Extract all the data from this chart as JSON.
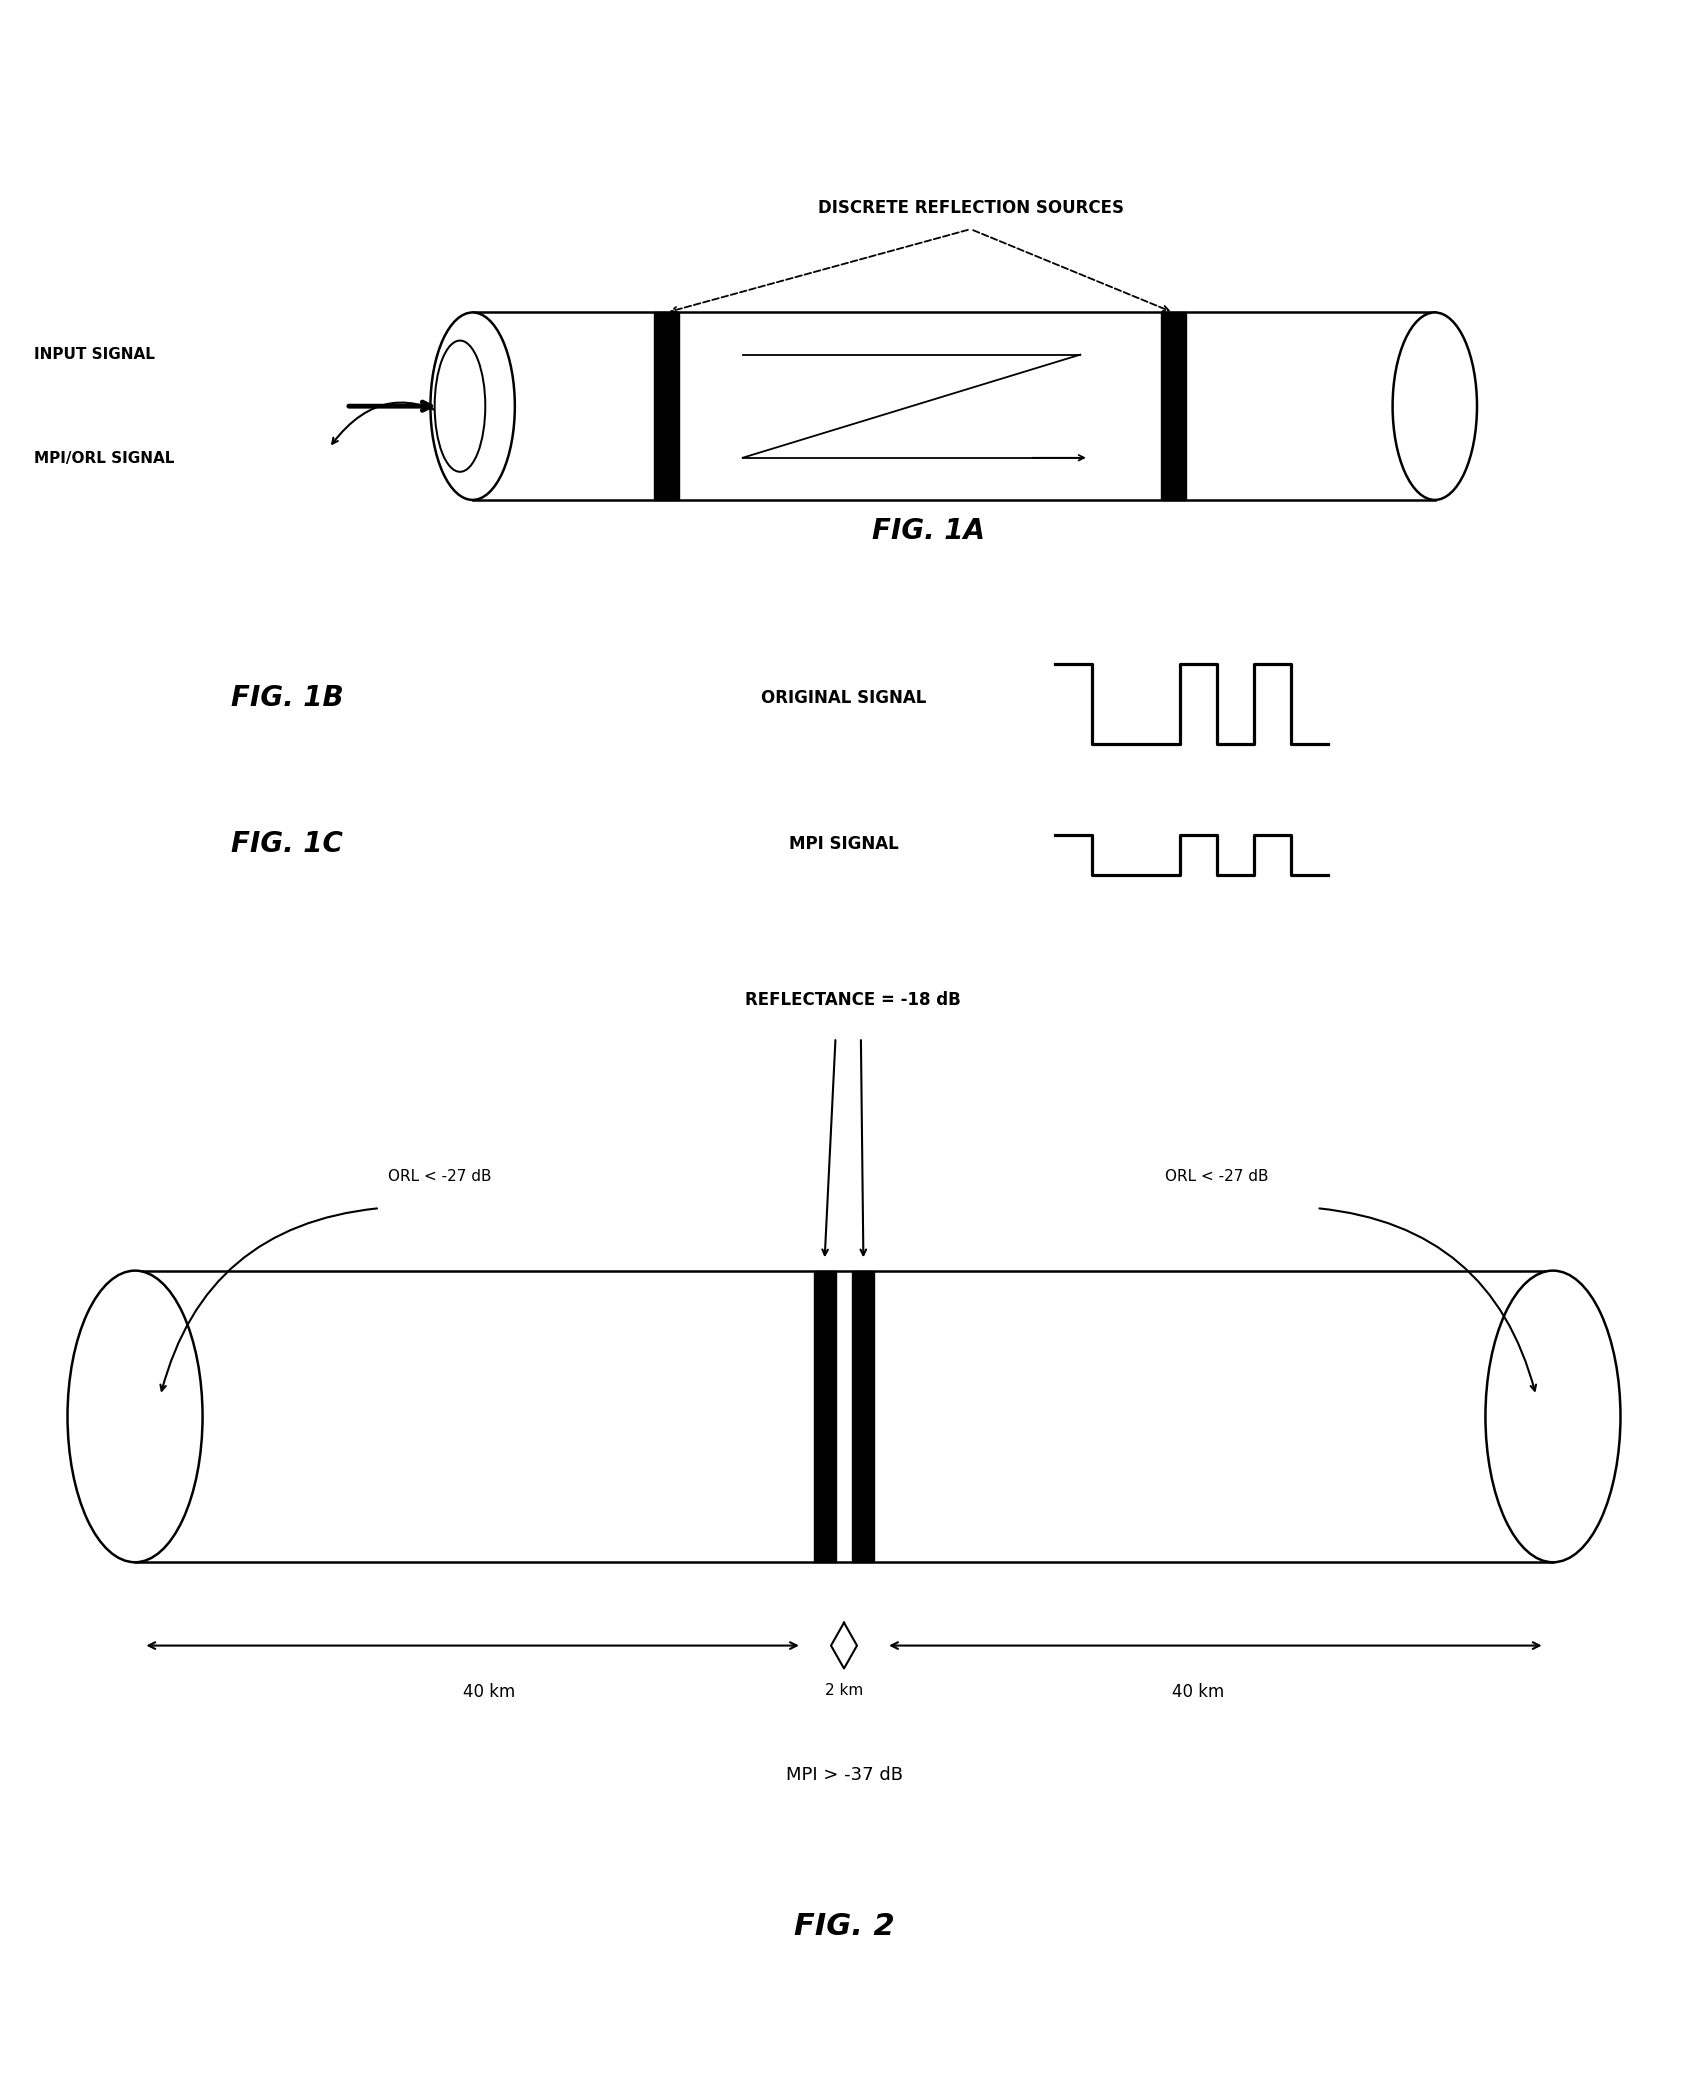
{
  "bg_color": "#ffffff",
  "fig_width": 16.88,
  "fig_height": 20.83,
  "dpi": 100,
  "fig1a": {
    "label": "FIG. 1A",
    "discrete_reflection_label": "DISCRETE REFLECTION SOURCES",
    "input_signal_label": "INPUT SIGNAL",
    "mpi_orl_label": "MPI/ORL SIGNAL"
  },
  "fig1b": {
    "label": "FIG. 1B",
    "signal_label": "ORIGINAL SIGNAL"
  },
  "fig1c": {
    "label": "FIG. 1C",
    "signal_label": "MPI SIGNAL"
  },
  "fig2": {
    "label": "FIG. 2",
    "reflectance_label": "REFLECTANCE = -18 dB",
    "orl_left_label": "ORL < -27 dB",
    "orl_right_label": "ORL < -27 dB",
    "mpi_label": "MPI > -37 dB",
    "dist_left": "40 km",
    "dist_center": "2 km",
    "dist_right": "40 km"
  }
}
